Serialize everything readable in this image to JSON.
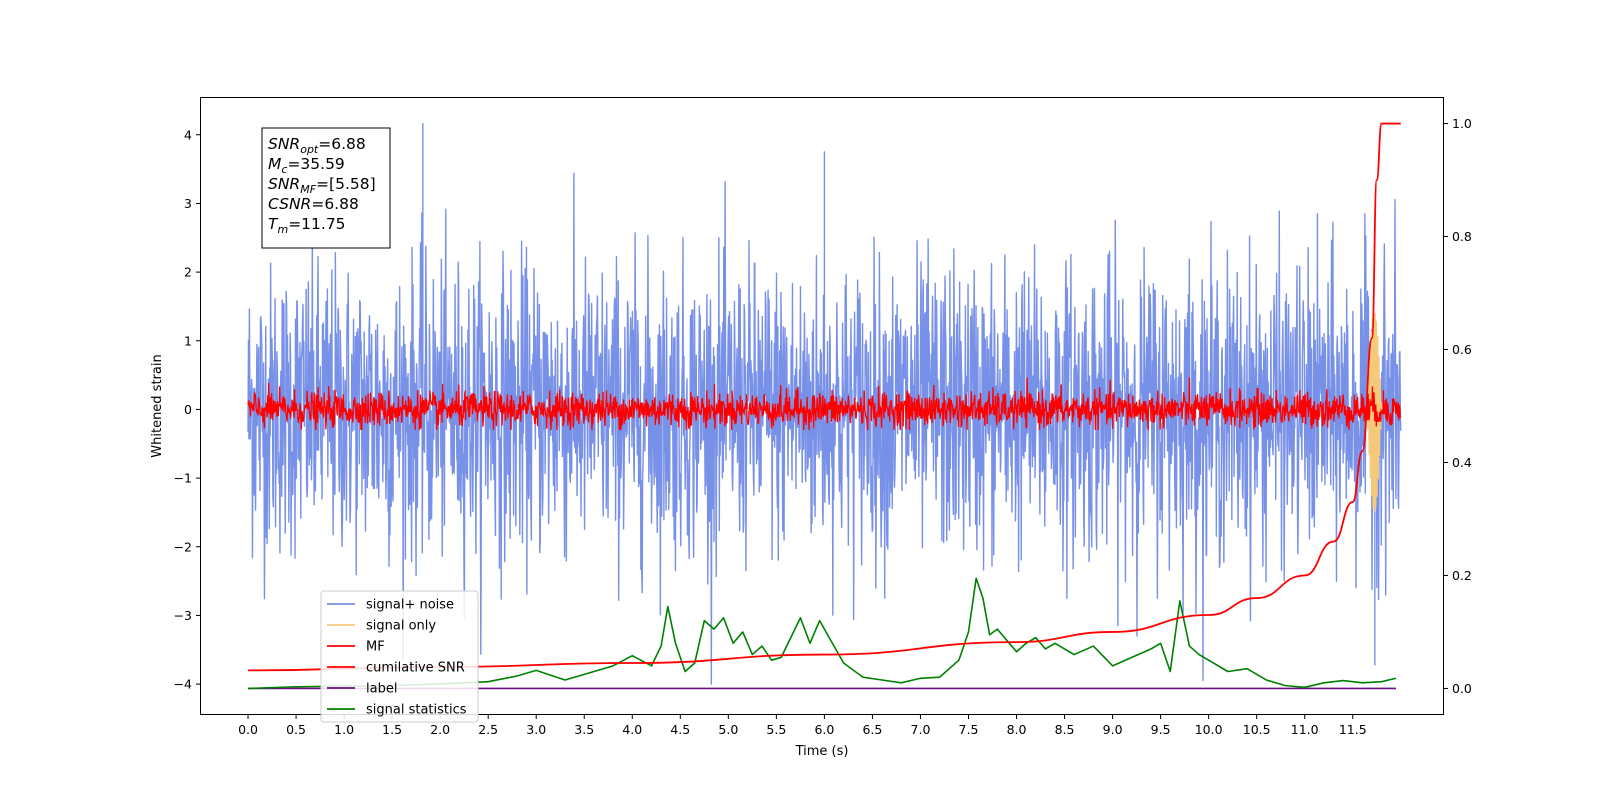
{
  "chart_data": {
    "type": "line",
    "xlabel": "Time (s)",
    "ylabel": "Whitened strain",
    "xlim": [
      -0.5,
      12.45
    ],
    "ylim": [
      -4.45,
      4.55
    ],
    "y2lim": [
      -0.047,
      1.047
    ],
    "x_ticks": [
      0.0,
      0.5,
      1.0,
      1.5,
      2.0,
      2.5,
      3.0,
      3.5,
      4.0,
      4.5,
      5.0,
      5.5,
      6.0,
      6.5,
      7.0,
      7.5,
      8.0,
      8.5,
      9.0,
      9.5,
      10.0,
      10.5,
      11.0,
      11.5
    ],
    "x_tick_labels": [
      "0.0",
      "0.5",
      "1.0",
      "1.5",
      "2.0",
      "2.5",
      "3.0",
      "3.5",
      "4.0",
      "4.5",
      "5.0",
      "5.5",
      "6.0",
      "6.5",
      "7.0",
      "7.5",
      "8.0",
      "8.5",
      "9.0",
      "9.5",
      "10.0",
      "10.5",
      "11.0",
      "11.5"
    ],
    "y_ticks": [
      4,
      3,
      2,
      1,
      0,
      -1,
      -2,
      -3,
      -4
    ],
    "y_tick_labels": [
      "4",
      "3",
      "2",
      "1",
      "0",
      "−1",
      "−2",
      "−3",
      "−4"
    ],
    "y2_ticks": [
      1.0,
      0.8,
      0.6,
      0.4,
      0.2,
      0.0
    ],
    "y2_tick_labels": [
      "1.0",
      "0.8",
      "0.6",
      "0.4",
      "0.2",
      "0.0"
    ],
    "grid": false,
    "legend_position": "lower-left",
    "series": [
      {
        "name": "signal+ noise",
        "color": "#7891e8",
        "kind": "noise",
        "x_range": [
          0.0,
          12.0
        ],
        "amplitude_range": [
          -4.0,
          4.17
        ],
        "y_extrema": [
          [
            1.82,
            4.17
          ],
          [
            6.0,
            3.76
          ],
          [
            11.73,
            -3.73
          ]
        ]
      },
      {
        "name": "signal only",
        "color": "#f5c97a",
        "kind": "chirp",
        "x_range": [
          11.65,
          11.8
        ]
      },
      {
        "name": "MF",
        "color": "#ff0000",
        "kind": "noise",
        "x_range": [
          0.0,
          12.0
        ],
        "amplitude_range": [
          -0.3,
          0.65
        ]
      },
      {
        "name": "cumilative SNR",
        "color": "#ff0000",
        "axis": "right",
        "x": [
          0.0,
          2.0,
          4.0,
          6.0,
          8.0,
          9.0,
          10.0,
          10.5,
          11.0,
          11.3,
          11.5,
          11.6,
          11.7,
          11.75,
          11.8,
          12.0
        ],
        "y": [
          0.032,
          0.038,
          0.045,
          0.06,
          0.082,
          0.1,
          0.13,
          0.16,
          0.2,
          0.26,
          0.33,
          0.42,
          0.62,
          0.9,
          1.0,
          1.0
        ]
      },
      {
        "name": "label",
        "color": "#6a0d80",
        "axis": "right",
        "x": [
          0.0,
          11.95
        ],
        "y": [
          0.0,
          0.0
        ]
      },
      {
        "name": "signal statistics",
        "color": "#008000",
        "axis": "right",
        "x": [
          0.0,
          0.5,
          1.0,
          1.5,
          2.0,
          2.5,
          2.8,
          3.0,
          3.3,
          3.5,
          3.8,
          4.0,
          4.2,
          4.3,
          4.37,
          4.45,
          4.55,
          4.65,
          4.75,
          4.85,
          4.95,
          5.05,
          5.15,
          5.25,
          5.35,
          5.45,
          5.55,
          5.65,
          5.75,
          5.85,
          5.95,
          6.05,
          6.2,
          6.4,
          6.6,
          6.8,
          7.0,
          7.2,
          7.4,
          7.5,
          7.58,
          7.65,
          7.72,
          7.8,
          7.9,
          8.0,
          8.1,
          8.2,
          8.3,
          8.4,
          8.6,
          8.8,
          9.0,
          9.2,
          9.4,
          9.5,
          9.6,
          9.7,
          9.8,
          9.9,
          10.0,
          10.2,
          10.4,
          10.6,
          10.8,
          11.0,
          11.2,
          11.4,
          11.6,
          11.8,
          11.95
        ],
        "y": [
          0.0,
          0.003,
          0.004,
          0.005,
          0.008,
          0.012,
          0.022,
          0.032,
          0.015,
          0.025,
          0.04,
          0.058,
          0.04,
          0.075,
          0.145,
          0.08,
          0.03,
          0.045,
          0.12,
          0.105,
          0.125,
          0.08,
          0.1,
          0.06,
          0.075,
          0.05,
          0.055,
          0.09,
          0.125,
          0.08,
          0.12,
          0.09,
          0.045,
          0.02,
          0.015,
          0.01,
          0.018,
          0.02,
          0.05,
          0.1,
          0.195,
          0.16,
          0.095,
          0.105,
          0.085,
          0.065,
          0.08,
          0.09,
          0.07,
          0.08,
          0.06,
          0.075,
          0.04,
          0.055,
          0.07,
          0.08,
          0.03,
          0.155,
          0.075,
          0.06,
          0.05,
          0.03,
          0.035,
          0.015,
          0.005,
          0.002,
          0.01,
          0.014,
          0.01,
          0.012,
          0.018
        ]
      }
    ],
    "annotation": {
      "lines": [
        {
          "label": "SNR",
          "sub": "opt",
          "value": "=6.88"
        },
        {
          "label": "M",
          "sub": "c",
          "value": "=35.59"
        },
        {
          "label": "SNR",
          "sub": "MF",
          "value": "=[5.58]"
        },
        {
          "label": "CSNR",
          "sub": "",
          "value": "=6.88"
        },
        {
          "label": "T",
          "sub": "m",
          "value": "=11.75"
        }
      ]
    }
  }
}
